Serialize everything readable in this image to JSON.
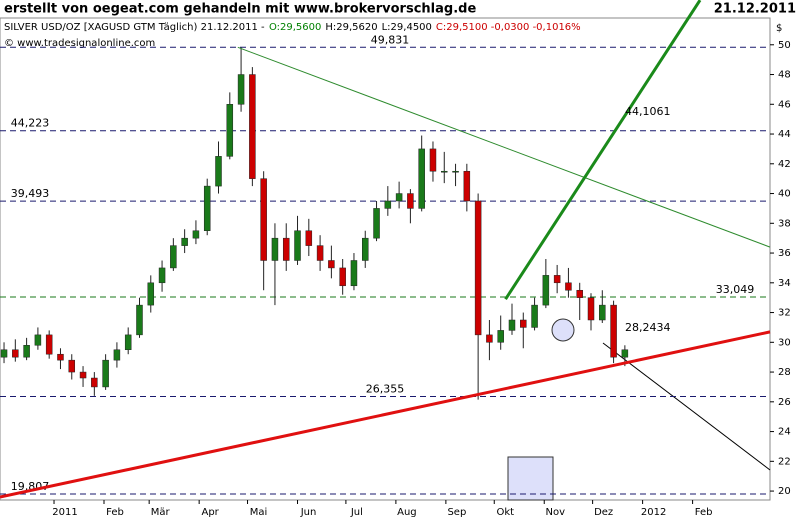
{
  "chart_data": {
    "type": "candlestick",
    "header": "erstellt von oegeat.com gehandeln mit www.brokervorschlag.de",
    "date": "21.12.2011",
    "info": [
      {
        "text": "SILVER USD/OZ [XAGUSD GTM  Täglich) 21.12.2011 -",
        "color": "#000000"
      },
      {
        "text": "O:29,5600",
        "color": "#008000"
      },
      {
        "text": "H:29,5620",
        "color": "#000000"
      },
      {
        "text": "L:29,4500",
        "color": "#000000"
      },
      {
        "text": "C:29,5100 -0,0300 -0,1016%",
        "color": "#cc0000"
      }
    ],
    "copyright": "© www.tradesignalonline.com",
    "y_unit": "$",
    "xlim": [
      -33.5,
      444
    ],
    "ylim": [
      19.4,
      51.8
    ],
    "yticks": [
      20,
      22,
      24,
      26,
      28,
      30,
      32,
      34,
      36,
      38,
      40,
      42,
      44,
      46,
      48,
      50
    ],
    "xticks": [
      {
        "value": 0,
        "label": "2011"
      },
      {
        "value": 31,
        "label": "Feb"
      },
      {
        "value": 59,
        "label": "Mär"
      },
      {
        "value": 90,
        "label": "Apr"
      },
      {
        "value": 120,
        "label": "Mai"
      },
      {
        "value": 151,
        "label": "Jun"
      },
      {
        "value": 181,
        "label": "Jul"
      },
      {
        "value": 212,
        "label": "Aug"
      },
      {
        "value": 243,
        "label": "Sep"
      },
      {
        "value": 273,
        "label": "Okt"
      },
      {
        "value": 304,
        "label": "Nov"
      },
      {
        "value": 334,
        "label": "Dez"
      },
      {
        "value": 365,
        "label": "2012"
      },
      {
        "value": 396,
        "label": "Feb"
      }
    ],
    "up_color": "#1a7a1a",
    "down_color": "#cc0000",
    "x": [
      -31,
      -24,
      -17,
      -10,
      -3,
      4,
      11,
      18,
      25,
      32,
      39,
      46,
      53,
      60,
      67,
      74,
      81,
      88,
      95,
      102,
      109,
      116,
      123,
      130,
      137,
      144,
      151,
      158,
      165,
      172,
      179,
      186,
      193,
      200,
      207,
      214,
      221,
      228,
      235,
      242,
      249,
      256,
      263,
      270,
      277,
      284,
      291,
      298,
      305,
      312,
      319,
      326,
      333,
      340,
      347,
      354
    ],
    "open": [
      29.0,
      29.5,
      29.0,
      29.8,
      30.5,
      29.2,
      28.8,
      28.0,
      27.6,
      27.0,
      28.8,
      29.5,
      30.5,
      32.5,
      34.0,
      35.0,
      36.5,
      37.0,
      37.5,
      40.5,
      42.5,
      46.0,
      48.0,
      41.0,
      35.5,
      37.0,
      35.5,
      37.5,
      36.5,
      35.5,
      35.0,
      33.8,
      35.5,
      37.0,
      39.0,
      39.5,
      40.0,
      39.0,
      43.0,
      41.5,
      41.5,
      41.5,
      39.5,
      30.5,
      30.0,
      30.8,
      31.5,
      31.0,
      32.5,
      34.5,
      34.0,
      33.5,
      33.0,
      31.5,
      32.5,
      29.0
    ],
    "high": [
      30.0,
      30.2,
      30.3,
      31.0,
      30.8,
      29.6,
      29.2,
      28.4,
      28.0,
      29.2,
      30.0,
      31.0,
      33.0,
      34.5,
      35.5,
      37.0,
      37.6,
      38.2,
      41.0,
      43.5,
      46.8,
      49.83,
      48.5,
      41.5,
      38.0,
      38.0,
      38.5,
      38.3,
      37.2,
      36.5,
      35.6,
      36.0,
      37.5,
      39.5,
      40.5,
      40.8,
      40.3,
      43.9,
      43.5,
      42.8,
      42.0,
      42.0,
      40.0,
      31.5,
      31.8,
      32.6,
      32.0,
      33.0,
      35.6,
      35.2,
      35.0,
      34.0,
      33.3,
      33.5,
      32.8,
      29.8
    ],
    "low": [
      28.6,
      28.7,
      28.8,
      29.5,
      28.9,
      28.2,
      27.5,
      27.0,
      26.4,
      26.8,
      28.3,
      29.2,
      30.3,
      32.0,
      33.4,
      34.8,
      36.0,
      36.6,
      37.2,
      40.0,
      42.3,
      45.5,
      40.5,
      33.5,
      32.5,
      34.8,
      35.2,
      35.8,
      34.8,
      34.3,
      33.2,
      33.5,
      35.0,
      36.8,
      38.5,
      39.0,
      38.0,
      38.8,
      40.8,
      40.7,
      40.5,
      38.8,
      26.15,
      28.8,
      29.5,
      30.5,
      29.6,
      30.8,
      32.3,
      33.3,
      33.0,
      31.5,
      30.8,
      31.3,
      28.6,
      28.4
    ],
    "close": [
      29.5,
      29.0,
      29.8,
      30.5,
      29.2,
      28.8,
      28.0,
      27.6,
      27.0,
      28.8,
      29.5,
      30.5,
      32.5,
      34.0,
      35.0,
      36.5,
      37.0,
      37.5,
      40.5,
      42.5,
      46.0,
      48.0,
      41.0,
      35.5,
      37.0,
      35.5,
      37.5,
      36.5,
      35.5,
      35.0,
      33.8,
      35.5,
      37.0,
      39.0,
      39.5,
      40.0,
      39.0,
      43.0,
      41.5,
      41.5,
      41.5,
      39.5,
      30.5,
      30.0,
      30.8,
      31.5,
      31.0,
      32.5,
      34.5,
      34.0,
      33.5,
      33.0,
      31.5,
      32.5,
      29.0,
      29.5
    ],
    "levels": [
      {
        "value": 49.831,
        "label": "49,831",
        "color": "#1a1a6e"
      },
      {
        "value": 44.223,
        "label": "44,223",
        "color": "#1a1a6e"
      },
      {
        "value": 39.493,
        "label": "39,493",
        "color": "#1a1a6e"
      },
      {
        "value": 33.049,
        "label": "33,049",
        "color": "#1a7a1a"
      },
      {
        "value": 26.355,
        "label": "26,355",
        "color": "#1a1a6e"
      },
      {
        "value": 19.807,
        "label": "19,807",
        "color": "#1a1a6e"
      }
    ],
    "trendlines": [
      {
        "x": [
          114,
          444
        ],
        "y": [
          49.83,
          36.4
        ],
        "color": "#2e8b2e",
        "width": 1
      },
      {
        "x": [
          280,
          400.6
        ],
        "y": [
          32.9,
          53.0
        ],
        "color": "#1a8a1a",
        "width": 3,
        "label": "44,1061"
      },
      {
        "x": [
          -33.5,
          444
        ],
        "y": [
          19.6,
          30.7
        ],
        "color": "#e01010",
        "width": 3,
        "label": "28,2434"
      }
    ]
  }
}
